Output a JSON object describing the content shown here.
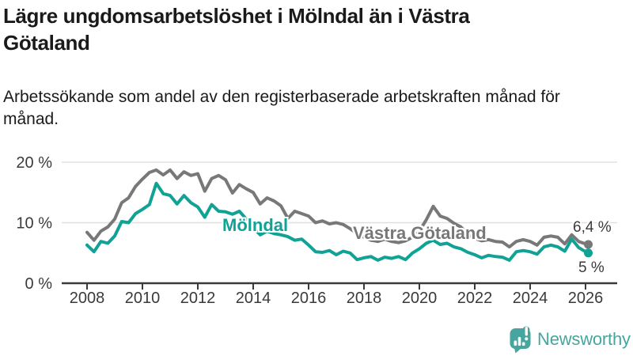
{
  "header": {
    "title": "Lägre ungdomsarbetslöshet i Mölndal än i Västra Götaland",
    "subtitle": "Arbetssökande som andel av den registerbaserade arbetskraften månad för månad."
  },
  "branding": {
    "name": "Newsworthy",
    "icon": "bar-chart-speech-bubble-icon",
    "color": "#46a59e"
  },
  "chart_data": {
    "type": "line",
    "title": "Lägre ungdomsarbetslöshet i Mölndal än i Västra Götaland",
    "subtitle": "Arbetssökande som andel av den registerbaserade arbetskraften månad för månad.",
    "x_unit": "year (quarterly samples of monthly data)",
    "x_first": 2008.0,
    "x_step": 0.25,
    "x_last": 2026.1,
    "xlim": [
      2007.3,
      2027.1
    ],
    "ylim": [
      0,
      21
    ],
    "grid": "horizontal",
    "legend_position": "inline-labels",
    "x_ticks": [
      {
        "value": 2008,
        "label": "2008"
      },
      {
        "value": 2010,
        "label": "2010"
      },
      {
        "value": 2012,
        "label": "2012"
      },
      {
        "value": 2014,
        "label": "2014"
      },
      {
        "value": 2016,
        "label": "2016"
      },
      {
        "value": 2018,
        "label": "2018"
      },
      {
        "value": 2020,
        "label": "2020"
      },
      {
        "value": 2022,
        "label": "2022"
      },
      {
        "value": 2024,
        "label": "2024"
      },
      {
        "value": 2026,
        "label": "2026"
      }
    ],
    "y_ticks": [
      {
        "value": 0,
        "label": "0 %"
      },
      {
        "value": 10,
        "label": "10 %"
      },
      {
        "value": 20,
        "label": "20 %"
      }
    ],
    "series": [
      {
        "name": "Mölndal",
        "color": "#10a295",
        "end_label": "5 %",
        "end_value": 5.0,
        "values": [
          6.3,
          5.2,
          6.9,
          6.6,
          7.8,
          10.2,
          10.0,
          11.5,
          12.2,
          13.0,
          16.5,
          14.8,
          14.5,
          13.1,
          14.5,
          13.3,
          12.6,
          10.9,
          13.0,
          11.9,
          11.8,
          11.4,
          11.9,
          10.6,
          9.2,
          8.0,
          8.6,
          8.2,
          8.0,
          7.7,
          7.1,
          7.3,
          6.3,
          5.2,
          5.1,
          5.4,
          4.7,
          5.3,
          5.0,
          3.9,
          4.2,
          4.4,
          3.8,
          4.3,
          4.1,
          4.4,
          3.9,
          5.0,
          5.7,
          6.6,
          7.1,
          6.4,
          6.6,
          6.0,
          5.7,
          5.1,
          4.7,
          4.2,
          4.6,
          4.4,
          4.3,
          3.8,
          5.2,
          5.4,
          5.2,
          4.8,
          6.0,
          6.3,
          6.0,
          5.3,
          7.3,
          5.9,
          5.2,
          5.0
        ]
      },
      {
        "name": "Västra Götaland",
        "color": "#787878",
        "end_label": "6,4 %",
        "end_value": 6.4,
        "values": [
          8.4,
          7.1,
          8.6,
          9.3,
          10.6,
          13.3,
          14.1,
          16.0,
          17.2,
          18.3,
          18.7,
          17.9,
          18.7,
          17.3,
          18.4,
          17.8,
          18.1,
          15.2,
          17.3,
          17.8,
          17.1,
          14.9,
          16.3,
          15.6,
          15.0,
          13.1,
          14.1,
          13.6,
          12.8,
          10.7,
          11.9,
          11.5,
          11.1,
          10.0,
          10.3,
          9.8,
          10.0,
          9.7,
          9.0,
          8.2,
          7.6,
          7.1,
          6.9,
          7.3,
          6.9,
          6.7,
          7.0,
          7.6,
          8.6,
          10.5,
          12.7,
          11.1,
          10.7,
          9.9,
          9.3,
          8.1,
          7.4,
          7.0,
          7.2,
          6.9,
          6.8,
          6.0,
          6.9,
          7.2,
          6.9,
          6.3,
          7.6,
          7.8,
          7.6,
          6.5,
          8.0,
          6.9,
          6.5,
          6.4
        ]
      }
    ]
  }
}
